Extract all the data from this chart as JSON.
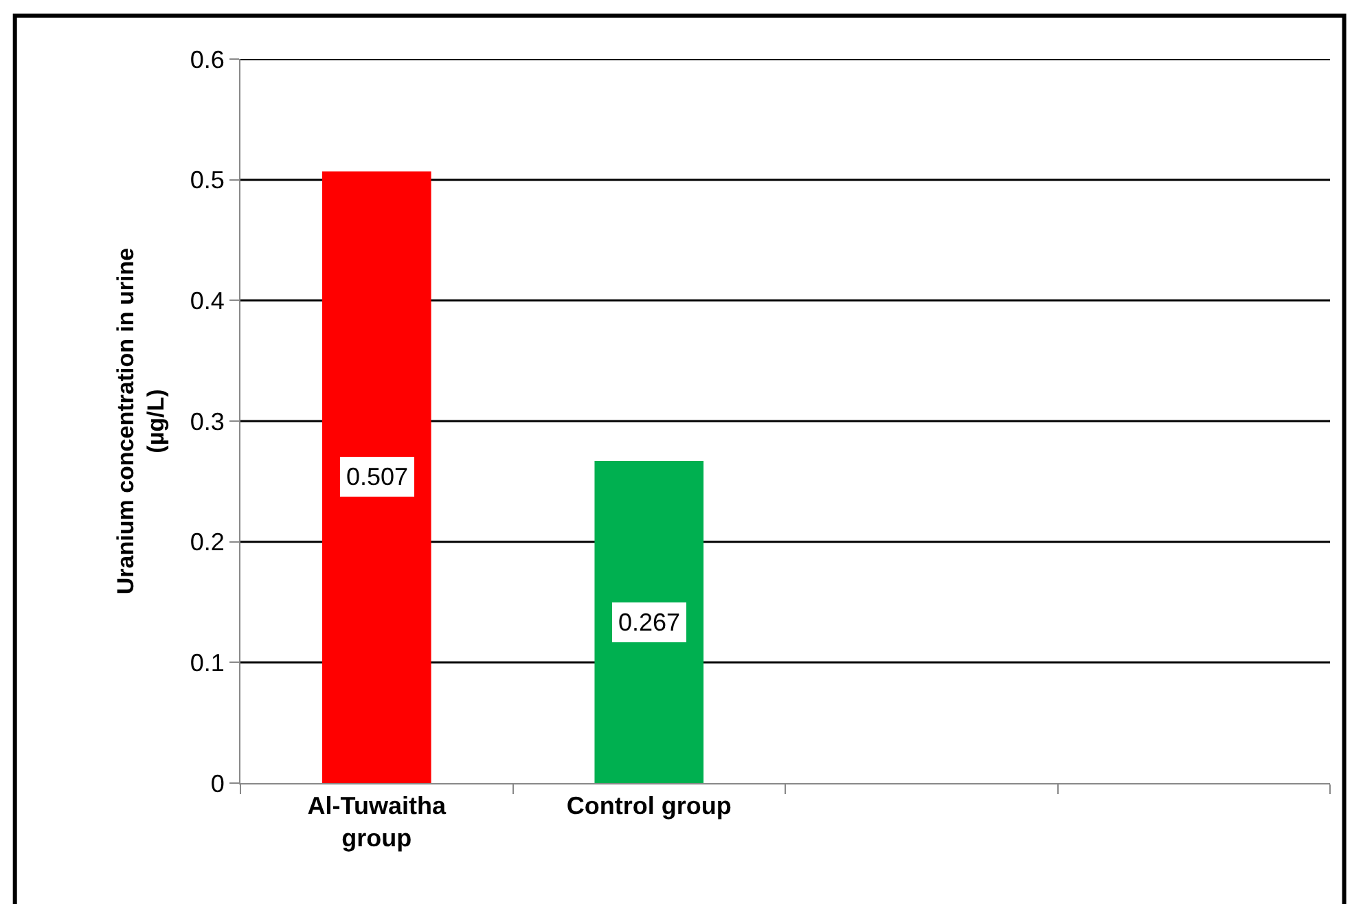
{
  "chart_data": {
    "type": "bar",
    "ylabel": "Uranium concentration in urine (µg/L)",
    "categories": [
      "Al-Tuwaitha group",
      "Control group",
      null,
      null
    ],
    "values": [
      0.507,
      0.267,
      null,
      null
    ],
    "colors": [
      "#ff0000",
      "#00b050",
      null,
      null
    ],
    "ylim": [
      0,
      0.6
    ],
    "yticks": [
      0,
      0.1,
      0.2,
      0.3,
      0.4,
      0.5,
      0.6
    ],
    "grid": "y",
    "data_labels": true
  }
}
